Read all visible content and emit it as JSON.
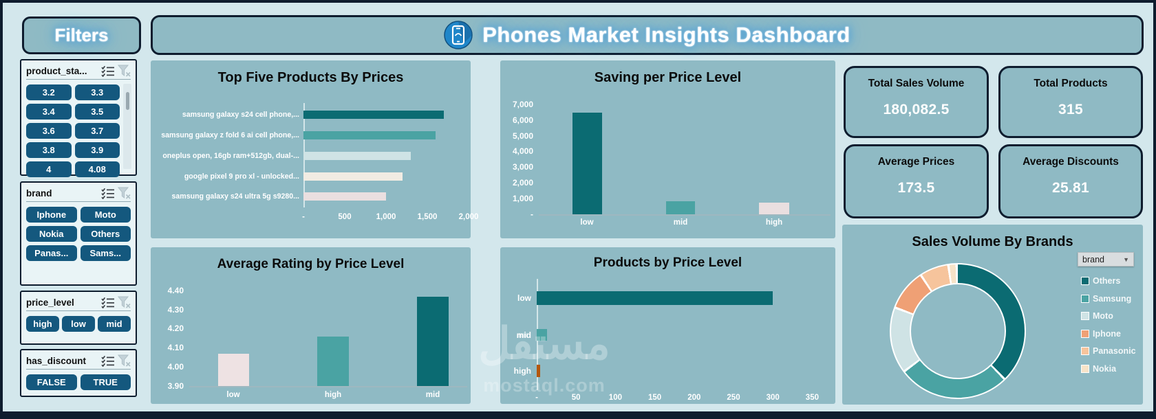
{
  "header": {
    "filters_label": "Filters",
    "title": "Phones Market Insights Dashboard",
    "title_icon": "phone-icon"
  },
  "slicers": [
    {
      "label": "product_sta...",
      "items": [
        "3.2",
        "3.3",
        "3.4",
        "3.5",
        "3.6",
        "3.7",
        "3.8",
        "3.9",
        "4",
        "4.08"
      ],
      "icons": [
        "multi-select-icon",
        "clear-filter-icon"
      ],
      "has_scrollbar": true
    },
    {
      "label": "brand",
      "items": [
        "Iphone",
        "Moto",
        "Nokia",
        "Others",
        "Panas...",
        "Sams..."
      ],
      "icons": [
        "multi-select-icon",
        "clear-filter-icon"
      ]
    },
    {
      "label": "price_level",
      "items": [
        "high",
        "low",
        "mid"
      ],
      "icons": [
        "multi-select-icon",
        "clear-filter-icon"
      ]
    },
    {
      "label": "has_discount",
      "items": [
        "FALSE",
        "TRUE"
      ],
      "icons": [
        "multi-select-icon",
        "clear-filter-icon"
      ]
    }
  ],
  "kpis": [
    {
      "title": "Total Sales Volume",
      "value": "180,082.5"
    },
    {
      "title": "Total Products",
      "value": "315"
    },
    {
      "title": "Average Prices",
      "value": "173.5"
    },
    {
      "title": "Average Discounts",
      "value": "25.81"
    }
  ],
  "chart_data": [
    {
      "type": "bar",
      "orientation": "horizontal",
      "title": "Top Five Products By Prices",
      "categories": [
        "samsung galaxy s24 cell phone,...",
        "samsung galaxy z fold 6 ai cell phone,...",
        "oneplus open, 16gb ram+512gb, dual-...",
        "google pixel 9 pro xl - unlocked...",
        "samsung galaxy s24 ultra 5g s9280..."
      ],
      "values": [
        1700,
        1600,
        1300,
        1200,
        1000
      ],
      "x_ticks": [
        "-",
        "500",
        "1,000",
        "1,500",
        "2,000"
      ],
      "xlim": [
        0,
        2000
      ],
      "bar_colors": [
        "#0b6b72",
        "#4aa3a3",
        "#cfe3e5",
        "#f2ece3",
        "#eadfe0"
      ],
      "pattern_bars": [
        2
      ]
    },
    {
      "type": "bar",
      "orientation": "vertical",
      "title": "Saving per Price Level",
      "categories": [
        "low",
        "mid",
        "high"
      ],
      "values": [
        6500,
        850,
        750
      ],
      "y_ticks": [
        "7,000",
        "6,000",
        "5,000",
        "4,000",
        "3,000",
        "2,000",
        "1,000",
        "-"
      ],
      "ylim": [
        0,
        7000
      ],
      "bar_colors": [
        "#0b6b72",
        "#4aa3a3",
        "#eadfe0"
      ]
    },
    {
      "type": "bar",
      "orientation": "vertical",
      "title": "Average Rating by Price Level",
      "categories": [
        "low",
        "high",
        "mid"
      ],
      "values": [
        4.07,
        4.16,
        4.37
      ],
      "y_ticks": [
        "4.40",
        "4.30",
        "4.20",
        "4.10",
        "4.00",
        "3.90"
      ],
      "ylim": [
        3.9,
        4.4
      ],
      "bar_colors": [
        "#eee2e3",
        "#4aa3a3",
        "#0b6b72"
      ]
    },
    {
      "type": "bar",
      "orientation": "horizontal",
      "title": "Products by Price Level",
      "categories": [
        "low",
        "mid",
        "high"
      ],
      "values": [
        300,
        13,
        2
      ],
      "x_ticks": [
        "-",
        "50",
        "100",
        "150",
        "200",
        "250",
        "300",
        "350"
      ],
      "xlim": [
        0,
        350
      ],
      "bar_colors": [
        "#0b6b72",
        "#4aa3a3",
        "#b4570e"
      ]
    },
    {
      "type": "donut",
      "title": "Sales Volume By Brands",
      "legend_dropdown": "brand",
      "labels": [
        "Others",
        "Samsung",
        "Moto",
        "Iphone",
        "Panasonic",
        "Nokia"
      ],
      "values_pct": [
        38,
        27,
        16,
        10,
        7,
        2
      ],
      "colors": [
        "#0b6b72",
        "#4aa3a3",
        "#cfe3e5",
        "#efa075",
        "#f6c49c",
        "#f7e3c8"
      ],
      "legend_position": "right"
    }
  ],
  "watermark": {
    "line1": "مستقل",
    "line2": "mostaql.com"
  },
  "colors": {
    "page_bg": "#d3e7ec",
    "card_bg": "#8fbac4",
    "panel_bg": "#e9f4f6",
    "border_navy": "#0e1c2e",
    "slicer_button": "#14587e",
    "accent_dark_teal": "#0b6b72",
    "accent_teal": "#4aa3a3",
    "accent_orange": "#b4570e"
  }
}
